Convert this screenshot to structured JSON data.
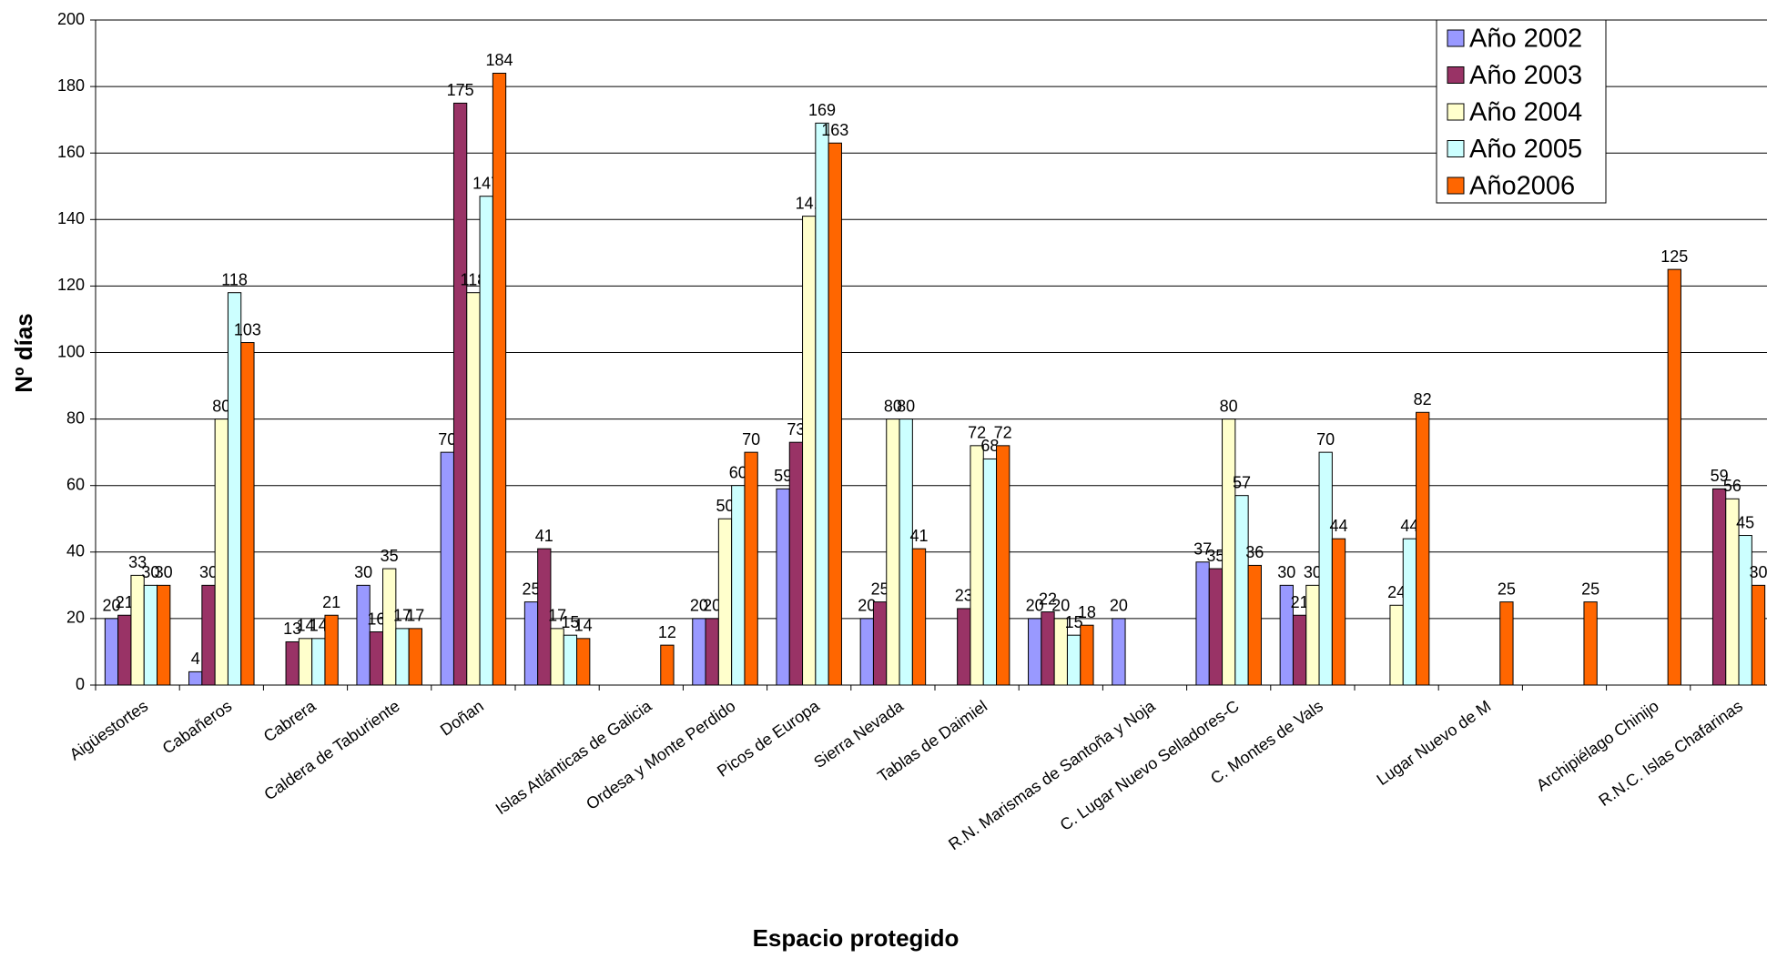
{
  "chart_data": {
    "type": "bar",
    "x_label": "Espacio protegido",
    "y_label": "Nº días",
    "categories": [
      "Aigüestortes",
      "Cabañeros",
      "Cabrera",
      "Caldera de Taburiente",
      "Doñan",
      null,
      "Islas Atlánticas de Galicia",
      "Ordesa y Monte Perdido",
      "Picos de Europa",
      "Sierra Nevada",
      "Tablas de Daimiel",
      null,
      "R.N. Marismas de Santoña y Noja",
      "C. Lugar Nuevo Selladores-C",
      "C. Montes de Vals",
      null,
      "Lugar Nuevo de M",
      null,
      "Archipiélago Chinijo",
      "R.N.C. Islas Chafarinas"
    ],
    "series": [
      {
        "name": "Año 2002",
        "color": "#9999ff",
        "values": [
          20,
          4,
          null,
          30,
          70,
          25,
          null,
          20,
          59,
          20,
          null,
          20,
          20,
          37,
          30,
          null,
          null,
          null,
          null,
          null
        ]
      },
      {
        "name": "Año 2003",
        "color": "#993366",
        "values": [
          21,
          30,
          13,
          16,
          175,
          41,
          null,
          20,
          73,
          25,
          23,
          22,
          null,
          35,
          21,
          null,
          null,
          null,
          null,
          59
        ]
      },
      {
        "name": "Año 2004",
        "color": "#ffffcc",
        "values": [
          33,
          80,
          14,
          35,
          118,
          17,
          null,
          50,
          141,
          80,
          72,
          20,
          null,
          80,
          30,
          24,
          null,
          null,
          null,
          56
        ]
      },
      {
        "name": "Año 2005",
        "color": "#ccffff",
        "values": [
          30,
          118,
          14,
          17,
          147,
          15,
          null,
          60,
          169,
          80,
          68,
          15,
          null,
          57,
          70,
          44,
          null,
          null,
          null,
          45
        ]
      },
      {
        "name": "Año2006",
        "color": "#ff6600",
        "values": [
          30,
          103,
          21,
          17,
          184,
          14,
          12,
          70,
          163,
          41,
          72,
          18,
          null,
          36,
          44,
          82,
          25,
          25,
          125,
          30
        ]
      }
    ],
    "ylim": [
      0,
      200
    ],
    "yticks": [
      0,
      20,
      40,
      60,
      80,
      100,
      120,
      140,
      160,
      180,
      200
    ],
    "grid": true,
    "legend": "top-right"
  }
}
